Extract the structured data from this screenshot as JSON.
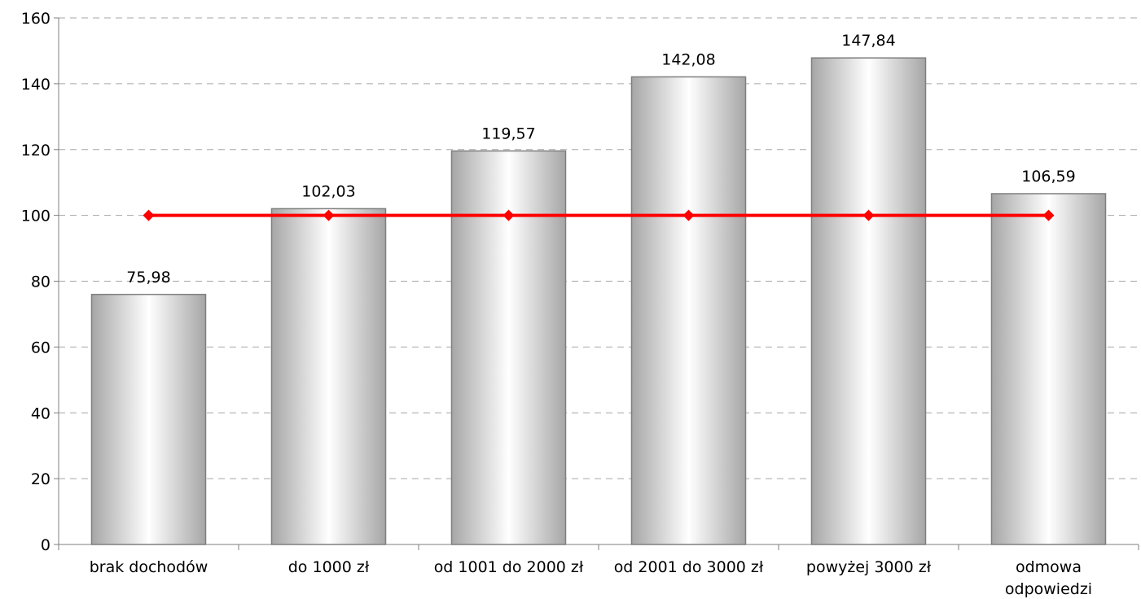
{
  "chart_data": {
    "type": "bar",
    "categories": [
      [
        "brak dochodów"
      ],
      [
        "do 1000 zł"
      ],
      [
        "od 1001 do 2000 zł"
      ],
      [
        "od 2001 do 3000 zł"
      ],
      [
        "powyżej 3000 zł"
      ],
      [
        "odmowa",
        "odpowiedzi"
      ]
    ],
    "series": [
      {
        "type": "bar",
        "values": [
          75.98,
          102.03,
          119.57,
          142.08,
          147.84,
          106.59
        ]
      },
      {
        "type": "line",
        "values": [
          100,
          100,
          100,
          100,
          100,
          100
        ]
      }
    ],
    "data_labels": [
      "75,98",
      "102,03",
      "119,57",
      "142,08",
      "147,84",
      "106,59"
    ],
    "ylim": [
      0,
      160
    ],
    "yticks": [
      0,
      20,
      40,
      60,
      80,
      100,
      120,
      140,
      160
    ],
    "grid": "horizontal dashed",
    "legend": "none",
    "colors": {
      "bar_fill_edge": "#a6a6a6",
      "bar_fill_center": "#ffffff",
      "bar_border": "#7f7f7f",
      "line": "#ff0000",
      "marker": "#ff0000",
      "grid": "#a6a6a6",
      "axis": "#7f7f7f"
    },
    "title": "",
    "xlabel": "",
    "ylabel": ""
  }
}
